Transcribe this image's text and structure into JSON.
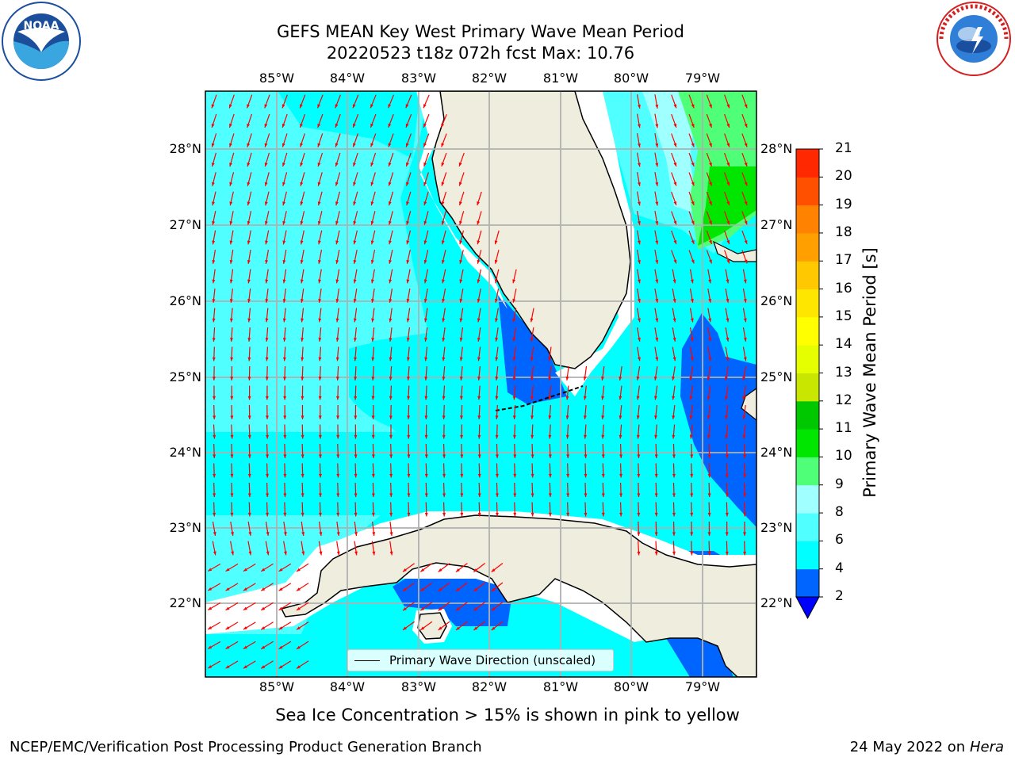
{
  "title_line1": "GEFS MEAN Key West Primary Wave Mean Period",
  "title_line2": "20220523 t18z 072h fcst   Max: 10.76",
  "logos": {
    "noaa_text": "NOAA",
    "noaa_ring": "NATIONAL OCEANIC AND ATMOSPHERIC ADMINISTRATION · U.S. DEPARTMENT OF COMMERCE",
    "nws_ring": "NATIONAL WEATHER SERVICE"
  },
  "map": {
    "lon_labels": [
      "85°W",
      "84°W",
      "83°W",
      "82°W",
      "81°W",
      "80°W",
      "79°W"
    ],
    "lat_labels": [
      "28°N",
      "27°N",
      "26°N",
      "25°N",
      "24°N",
      "23°N",
      "22°N"
    ],
    "legend_label": "Primary Wave Direction (unscaled)",
    "arrow_color": "#ff0000",
    "land_color": "#efedde"
  },
  "colorbar": {
    "label": "Primary Wave Mean Period [s]",
    "ticks": [
      "21",
      "20",
      "19",
      "18",
      "17",
      "16",
      "15",
      "14",
      "13",
      "12",
      "11",
      "10",
      "9",
      "8",
      "6",
      "4",
      "2"
    ],
    "colors_bottom_to_top": [
      "#0064ff",
      "#00e6ff",
      "#00ffff",
      "#50ffff",
      "#a0ffff",
      "#50ff78",
      "#00e600",
      "#00c800",
      "#64d200",
      "#c8e600",
      "#e6ff00",
      "#ffff00",
      "#ffe600",
      "#ffc800",
      "#ffa000",
      "#ff8200",
      "#ff5000",
      "#ff2800",
      "#ff0000"
    ],
    "extend_color": "#0000ff"
  },
  "caption": "Sea Ice Concentration > 15% is shown in pink to yellow",
  "credit": "NCEP/EMC/Verification Post Processing Product Generation Branch",
  "date": "24 May 2022 on",
  "host": "Hera"
}
